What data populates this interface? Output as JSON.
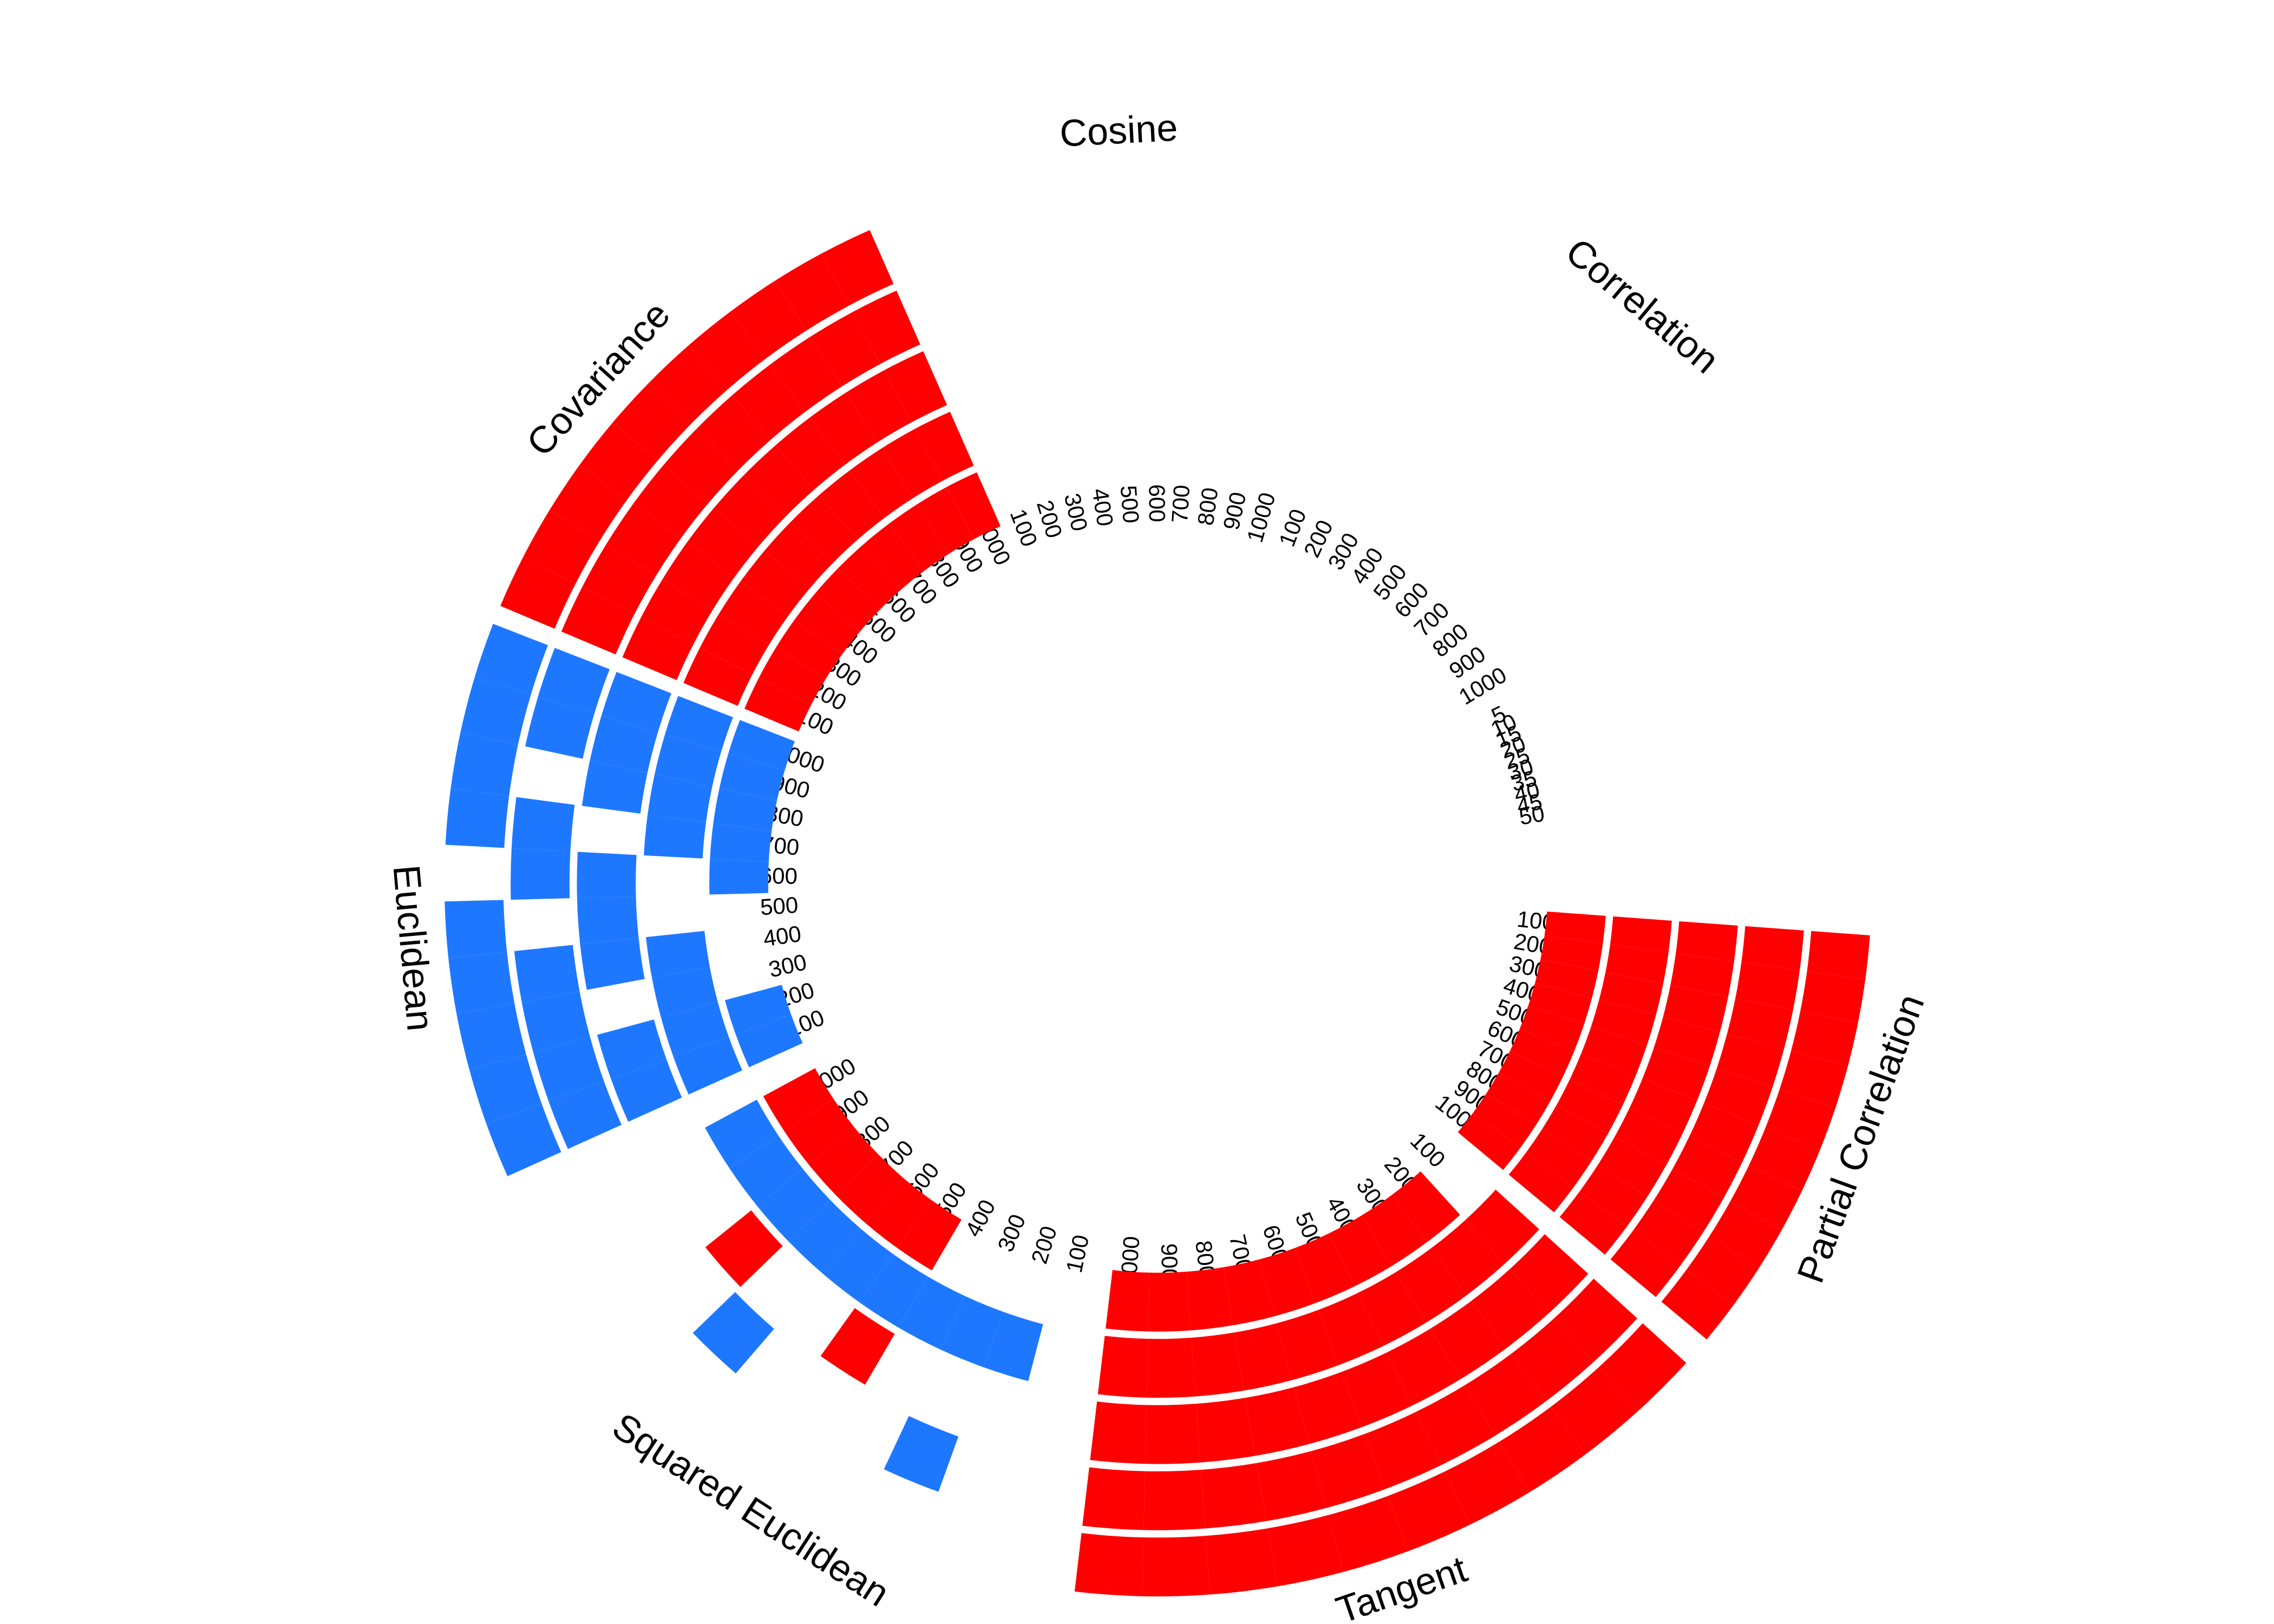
{
  "chart_data": {
    "type": "circular-heatmap",
    "palette": [
      "#1e78ff",
      "#ff0000"
    ],
    "sectors": [
      {
        "name": "Cosine",
        "ticks": [
          100,
          200,
          300,
          400,
          500,
          600,
          700,
          800,
          900,
          1000
        ]
      },
      {
        "name": "Correlation",
        "ticks": [
          100,
          200,
          300,
          400,
          500,
          600,
          700,
          800,
          900,
          1000
        ]
      },
      {
        "ticks": [
          5,
          10,
          15,
          20,
          25,
          30,
          35,
          40,
          45,
          50
        ]
      },
      {
        "name": "Partial Correlation",
        "ticks": [
          100,
          200,
          300,
          400,
          500,
          600,
          700,
          800,
          900,
          1000
        ],
        "rings": [
          [
            1,
            1,
            1,
            1,
            1,
            1,
            1,
            1,
            1,
            1
          ],
          [
            1,
            1,
            1,
            1,
            1,
            1,
            1,
            1,
            1,
            1
          ],
          [
            1,
            1,
            1,
            1,
            1,
            1,
            1,
            1,
            1,
            1
          ],
          [
            1,
            1,
            1,
            1,
            1,
            1,
            1,
            1,
            1,
            1
          ],
          [
            1,
            1,
            1,
            1,
            1,
            1,
            1,
            1,
            1,
            1
          ]
        ]
      },
      {
        "name": "Tangent",
        "ticks": [
          100,
          200,
          300,
          400,
          500,
          600,
          700,
          800,
          900,
          1000
        ],
        "rings": [
          [
            null,
            1,
            1,
            1,
            1,
            1,
            1,
            1,
            1,
            1
          ],
          [
            1,
            1,
            1,
            1,
            1,
            1,
            1,
            1,
            1,
            1
          ],
          [
            1,
            1,
            1,
            1,
            1,
            1,
            1,
            1,
            1,
            1
          ],
          [
            1,
            1,
            1,
            1,
            1,
            1,
            1,
            1,
            1,
            1
          ],
          [
            1,
            1,
            1,
            1,
            1,
            1,
            1,
            1,
            1,
            1
          ]
        ]
      },
      {
        "name": "Squared Euclidean",
        "ticks": [
          100,
          200,
          300,
          400,
          500,
          600,
          700,
          800,
          900,
          1000
        ],
        "rings": [
          [
            null,
            null,
            null,
            null,
            1,
            1,
            1,
            1,
            1,
            1
          ],
          [
            null,
            0,
            0,
            0,
            0,
            0,
            0,
            0,
            0,
            0
          ],
          [
            null,
            null,
            null,
            null,
            1,
            null,
            null,
            1,
            null,
            null
          ],
          [
            null,
            null,
            0,
            null,
            null,
            null,
            0,
            null,
            null,
            null
          ]
        ]
      },
      {
        "name": "Euclidean",
        "ticks": [
          100,
          200,
          300,
          400,
          500,
          600,
          700,
          800,
          900,
          1000
        ],
        "rings": [
          [
            0,
            0,
            null,
            null,
            null,
            0,
            0,
            0,
            0,
            0
          ],
          [
            0,
            0,
            0,
            0,
            null,
            null,
            0,
            0,
            0,
            0
          ],
          [
            0,
            0,
            null,
            0,
            0,
            0,
            null,
            0,
            0,
            0
          ],
          [
            0,
            0,
            0,
            0,
            null,
            0,
            0,
            null,
            0,
            0
          ],
          [
            0,
            0,
            0,
            0,
            0,
            null,
            0,
            0,
            0,
            0
          ]
        ]
      },
      {
        "name": "Covariance",
        "ticks": [
          100,
          200,
          300,
          400,
          500,
          600,
          700,
          800,
          900,
          1000
        ],
        "rings": [
          [
            1,
            1,
            1,
            1,
            1,
            1,
            1,
            1,
            1,
            1
          ],
          [
            1,
            1,
            1,
            1,
            1,
            1,
            1,
            1,
            1,
            1
          ],
          [
            1,
            1,
            1,
            1,
            1,
            1,
            1,
            1,
            1,
            1
          ],
          [
            1,
            1,
            1,
            1,
            1,
            1,
            1,
            1,
            1,
            1
          ],
          [
            1,
            1,
            1,
            1,
            1,
            1,
            1,
            1,
            1,
            1
          ]
        ]
      }
    ]
  }
}
